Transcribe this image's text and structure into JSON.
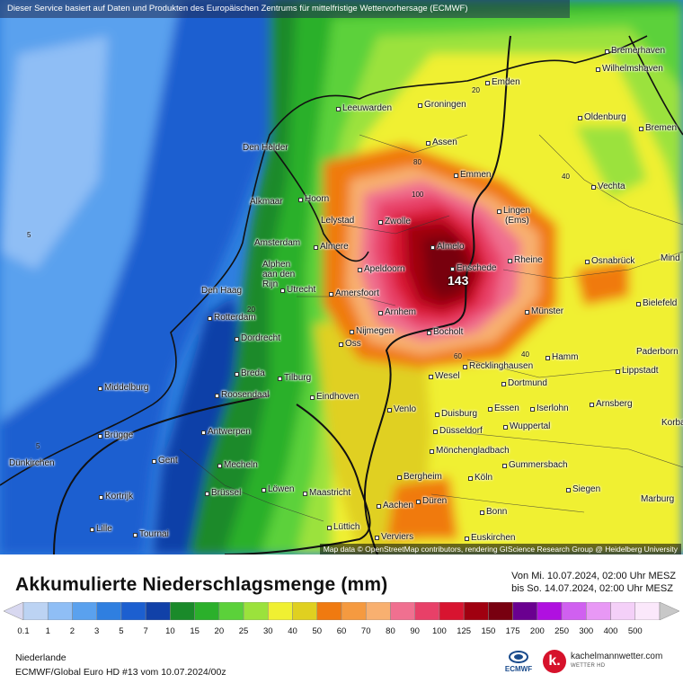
{
  "disclaimer": "Dieser Service basiert auf Daten und Produkten des Europäischen Zentrums für mittelfristige Wettervorhersage (ECMWF)",
  "attribution": "Map data © OpenStreetMap contributors, rendering GIScience Research Group @ Heidelberg University",
  "max_value": "143",
  "title": "Akkumulierte Niederschlagsmenge (mm)",
  "period_from": "Von Mi. 10.07.2024, 02:00 Uhr MESZ",
  "period_to": "bis So. 14.07.2024, 02:00 Uhr MESZ",
  "region": "Niederlande",
  "model": "ECMWF/Global Euro HD #13 vom  10.07.2024/00z",
  "logos": {
    "ecmwf": "ECMWF",
    "kachel": "kachelmannwetter.com",
    "kachel_sub": "WETTER HD"
  },
  "legend": {
    "ticks": [
      "0.1",
      "1",
      "2",
      "3",
      "5",
      "7",
      "10",
      "15",
      "20",
      "25",
      "30",
      "40",
      "50",
      "60",
      "70",
      "80",
      "90",
      "100",
      "125",
      "150",
      "175",
      "200",
      "250",
      "300",
      "400",
      "500"
    ],
    "colors": [
      "#d8d8f0",
      "#bcd3f3",
      "#8fbef5",
      "#5aa1ee",
      "#2f7fe0",
      "#1c5fd0",
      "#1141a8",
      "#1a8a2a",
      "#2bb02b",
      "#5bd13a",
      "#9be23c",
      "#f0f032",
      "#e0d020",
      "#f07a10",
      "#f59a40",
      "#f8b070",
      "#f07090",
      "#e84068",
      "#d81430",
      "#a00010",
      "#780010",
      "#6a0090",
      "#b010e0",
      "#d060f0",
      "#e898f5",
      "#f4d0f8",
      "#fbe8fb",
      "#c8c8c8"
    ]
  },
  "cities": {
    "bremerhaven": "Bremerhaven",
    "wilhelmshaven": "Wilhelmshaven",
    "emden": "Emden",
    "leeuwarden": "Leeuwarden",
    "groningen": "Groningen",
    "oldenburg": "Oldenburg",
    "bremen": "Bremen",
    "den_helder": "Den Helder",
    "assen": "Assen",
    "emmen": "Emmen",
    "vechta": "Vechta",
    "alkmaar": "Alkmaar",
    "hoorn": "Hoorn",
    "lelystad": "Lelystad",
    "zwolle": "Zwolle",
    "lingen": "Lingen",
    "lingen2": "(Ems)",
    "amsterdam": "Amsterdam",
    "almere": "Almere",
    "almelo": "Almelo",
    "minden": "Mind",
    "alphen1": "Alphen",
    "alphen2": "aan den",
    "alphen3": "Rijn",
    "apeldoorn": "Apeldoorn",
    "enschede": "Enschede",
    "rheine": "Rheine",
    "osnabrueck": "Osnabrück",
    "den_haag": "Den Haag",
    "utrecht": "Utrecht",
    "amersfoort": "Amersfoort",
    "bielefeld": "Bielefeld",
    "rotterdam": "Rotterdam",
    "arnhem": "Arnhem",
    "muenster": "Münster",
    "dordrecht": "Dordrecht",
    "nijmegen": "Nijmegen",
    "oss": "Oss",
    "bocholt": "Bocholt",
    "paderborn": "Paderborn",
    "breda": "Breda",
    "tilburg": "Tilburg",
    "recklinghausen": "Recklinghausen",
    "hamm": "Hamm",
    "middelburg": "Middelburg",
    "roosendaal": "Roosendaal",
    "eindhoven": "Eindhoven",
    "wesel": "Wesel",
    "lippstadt": "Lippstadt",
    "dortmund": "Dortmund",
    "venlo": "Venlo",
    "essen": "Essen",
    "iserlohn": "Iserlohn",
    "arnsberg": "Arnsberg",
    "duisburg": "Duisburg",
    "wuppertal": "Wuppertal",
    "korbach": "Korba",
    "bruegge": "Brügge",
    "antwerpen": "Antwerpen",
    "duesseldorf": "Düsseldorf",
    "moenchengladbach": "Mönchengladbach",
    "duenkirchen": "Dünkirchen",
    "gent": "Gent",
    "mecheln": "Mecheln",
    "bergheim": "Bergheim",
    "gummersbach": "Gummersbach",
    "kortrijk": "Kortrijk",
    "bruessel": "Brüssel",
    "loewen": "Löwen",
    "maastricht": "Maastricht",
    "koeln": "Köln",
    "siegen": "Siegen",
    "aachen": "Aachen",
    "dueren": "Düren",
    "marburg": "Marburg",
    "lille": "Lille",
    "tournai": "Tournai",
    "luettich": "Lüttich",
    "bonn": "Bonn",
    "verviers": "Verviers",
    "euskirchen": "Euskirchen"
  },
  "isolines": {
    "i20a": "20",
    "i20b": "20",
    "i40a": "40",
    "i40b": "40",
    "i60a": "60",
    "i60b": "60",
    "i80": "80",
    "i100": "100",
    "i5a": "5",
    "i5b": "5"
  }
}
